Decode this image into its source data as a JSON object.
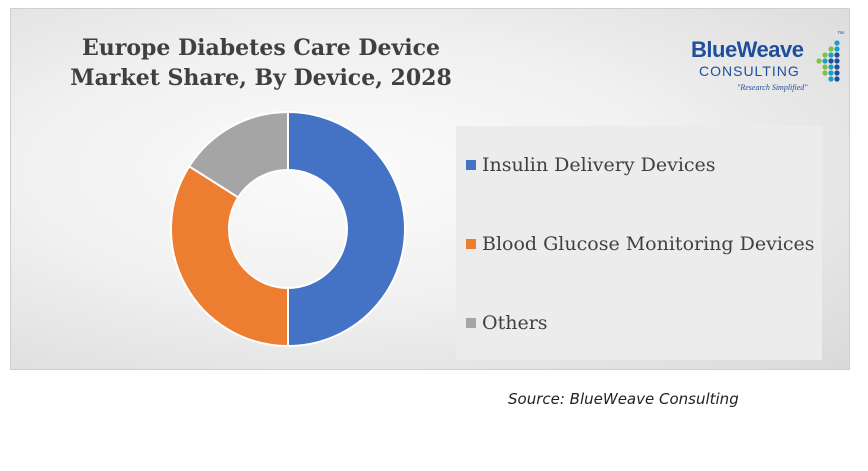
{
  "chart_data": {
    "type": "pie",
    "title_lines": [
      "Europe Diabetes Care Device",
      "Market Share, By Device, 2028"
    ],
    "categories": [
      "Insulin Delivery Devices",
      "Blood Glucose Monitoring Devices",
      "Others"
    ],
    "values": [
      50,
      34,
      16
    ],
    "colors": [
      "#4472c4",
      "#ed7d31",
      "#a5a5a5"
    ],
    "donut": true,
    "legend_position": "right"
  },
  "logo": {
    "name": "BlueWeave",
    "sub": "CONSULTING",
    "tagline": "\"Research Simplified\"",
    "trademark": "™",
    "colors": {
      "blue": "#1f4e9c",
      "green": "#7dc242",
      "teal": "#1aa0c8"
    }
  },
  "source": "Source: BlueWeave Consulting"
}
